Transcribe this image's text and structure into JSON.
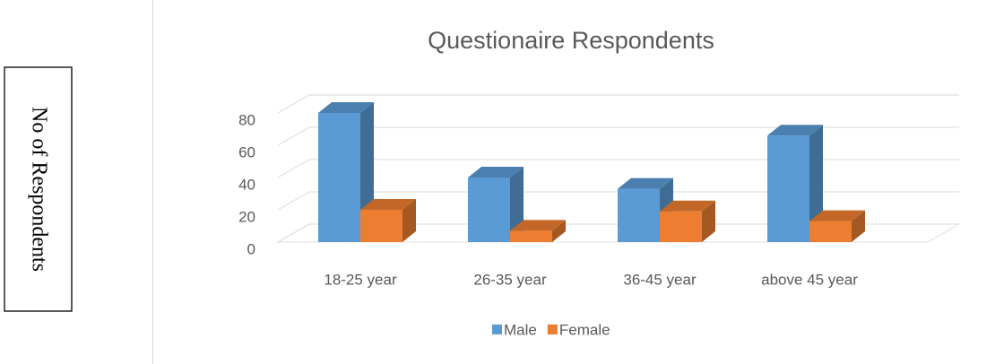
{
  "chart_data": {
    "type": "bar3d",
    "title": "Questionaire Respondents",
    "ylabel": "No of Respondents",
    "categories": [
      "18-25 year",
      "26-35 year",
      "36-45 year",
      "above 45 year"
    ],
    "series": [
      {
        "name": "Male",
        "color": "#5b9bd5",
        "values": [
          80,
          40,
          33,
          66
        ]
      },
      {
        "name": "Female",
        "color": "#ed7d31",
        "values": [
          20,
          7,
          19,
          13
        ]
      }
    ],
    "ylim": [
      0,
      90
    ],
    "yticks": [
      0,
      20,
      40,
      60,
      80
    ],
    "grid": true,
    "legend": "bottom"
  }
}
